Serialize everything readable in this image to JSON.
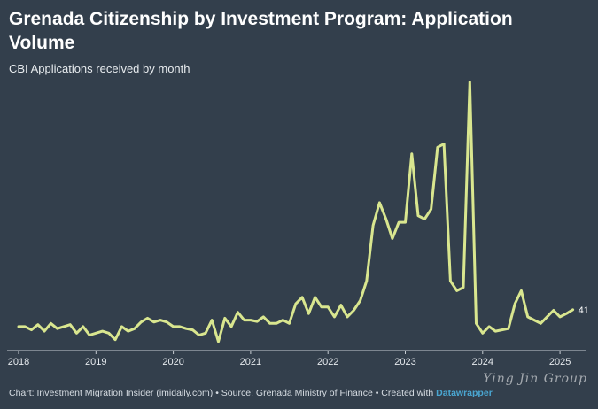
{
  "title": "Grenada Citizenship by Investment Program: Application Volume",
  "subtitle": "CBI Applications received by month",
  "footer": {
    "text": "Chart: Investment Migration Insider (imidaily.com) • Source: Grenada Ministry of Finance • Created with ",
    "brand": "Datawrapper"
  },
  "watermark": "Ying Jin Group",
  "colors": {
    "background": "#333f4c",
    "line": "#d9e68f",
    "axis": "#c7cdd3"
  },
  "chart_data": {
    "type": "line",
    "xlabel": "",
    "ylabel": "",
    "grid": false,
    "x_start": "2018-01",
    "x_ticks": [
      "2018",
      "2019",
      "2020",
      "2021",
      "2022",
      "2023",
      "2024",
      "2025"
    ],
    "last_value_label": "41",
    "ylim": [
      0,
      400
    ],
    "values": [
      15,
      15,
      10,
      18,
      8,
      20,
      12,
      15,
      18,
      5,
      15,
      2,
      5,
      8,
      5,
      -5,
      15,
      8,
      12,
      22,
      28,
      22,
      25,
      22,
      15,
      15,
      12,
      10,
      2,
      5,
      25,
      -8,
      28,
      15,
      37,
      25,
      25,
      23,
      30,
      20,
      20,
      25,
      20,
      50,
      60,
      35,
      60,
      45,
      45,
      30,
      48,
      30,
      40,
      55,
      85,
      170,
      205,
      180,
      150,
      175,
      175,
      280,
      185,
      180,
      195,
      290,
      295,
      85,
      70,
      75,
      390,
      20,
      5,
      15,
      8,
      10,
      12,
      50,
      70,
      30,
      25,
      20,
      30,
      40,
      30,
      35,
      41
    ]
  }
}
